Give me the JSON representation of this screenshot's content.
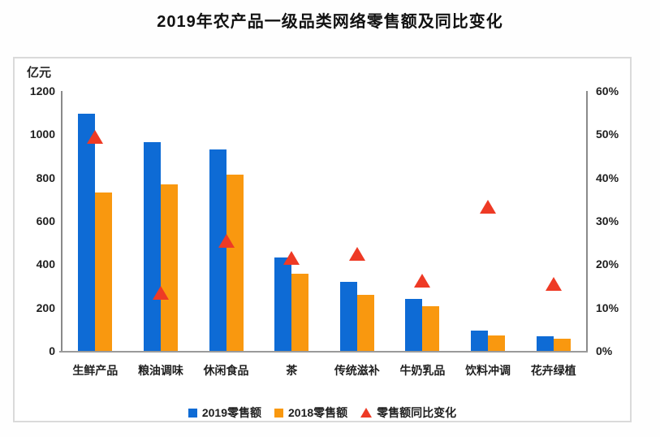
{
  "title": "2019年农产品一级品类网络零售额及同比变化",
  "colors": {
    "bar_2019": "#0E6BD5",
    "bar_2018": "#F9980F",
    "growth_triangle": "#EE3A25",
    "axis_line": "#8A8A8A",
    "box_border": "#DADADA",
    "text": "#1F1F1F"
  },
  "chart_data": {
    "type": "bar",
    "title": "2019年农产品一级品类网络零售额及同比变化",
    "categories": [
      "生鲜产品",
      "粮油调味",
      "休闲食品",
      "茶",
      "传统滋补",
      "牛奶乳品",
      "饮料冲调",
      "花卉绿植"
    ],
    "series": [
      {
        "name": "2019零售额",
        "type": "bar",
        "axis": "left",
        "color": "#0E6BD5",
        "values": [
          1095,
          965,
          930,
          430,
          320,
          240,
          95,
          67
        ]
      },
      {
        "name": "2018零售额",
        "type": "bar",
        "axis": "left",
        "color": "#F9980F",
        "values": [
          730,
          770,
          815,
          357,
          260,
          205,
          72,
          55
        ]
      },
      {
        "name": "零售额同比变化",
        "type": "triangle-point",
        "axis": "right",
        "color": "#EE3A25",
        "values": [
          49.4,
          13.4,
          25.4,
          21.3,
          22.3,
          16.2,
          33.2,
          15.4
        ]
      }
    ],
    "y_left": {
      "unit": "亿元",
      "min": 0,
      "max": 1200,
      "step": 200,
      "ticks": [
        "0",
        "200",
        "400",
        "600",
        "800",
        "1000",
        "1200"
      ]
    },
    "y_right": {
      "min": 0,
      "max": 60,
      "step": 10,
      "ticks": [
        "0%",
        "10%",
        "20%",
        "30%",
        "40%",
        "50%",
        "60%"
      ]
    },
    "legend": [
      "2019零售额",
      "2018零售额",
      "零售额同比变化"
    ],
    "legend_position": "bottom",
    "grid": false
  }
}
